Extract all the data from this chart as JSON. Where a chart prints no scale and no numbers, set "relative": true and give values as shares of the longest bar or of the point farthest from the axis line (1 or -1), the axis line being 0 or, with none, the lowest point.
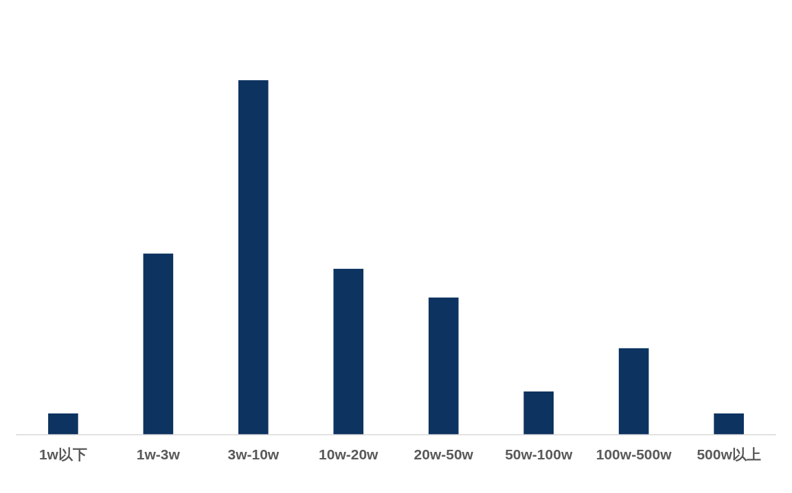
{
  "chart_data": {
    "type": "bar",
    "relative": true,
    "categories": [
      "1w以下",
      "1w-3w",
      "3w-10w",
      "10w-20w",
      "20w-50w",
      "50w-100w",
      "100w-500w",
      "500w以上"
    ],
    "values": [
      0.06,
      0.511,
      1,
      0.468,
      0.387,
      0.122,
      0.244,
      0.06
    ],
    "color": "#0d3360"
  }
}
